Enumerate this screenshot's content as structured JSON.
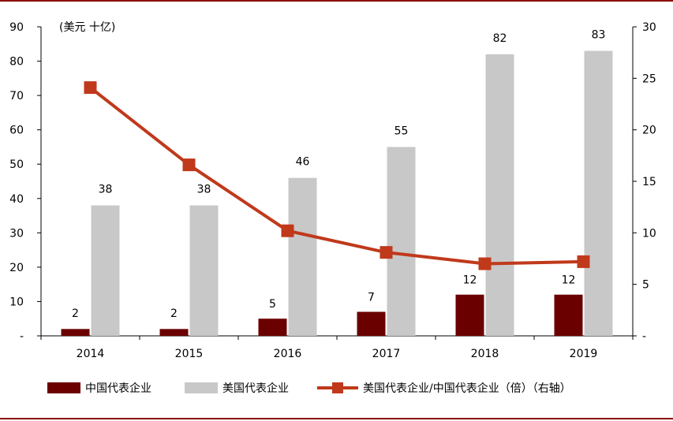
{
  "chart_data": {
    "type": "bar",
    "unit_label": "(美元 十亿)",
    "categories": [
      "2014",
      "2015",
      "2016",
      "2017",
      "2018",
      "2019"
    ],
    "series": [
      {
        "name": "中国代表企业",
        "kind": "bar",
        "axis": "left",
        "color": "#6b0000",
        "values": [
          2,
          2,
          5,
          7,
          12,
          12
        ],
        "labels": [
          "2",
          "2",
          "5",
          "7",
          "12",
          "12"
        ]
      },
      {
        "name": "美国代表企业",
        "kind": "bar",
        "axis": "left",
        "color": "#c8c8c8",
        "values": [
          38,
          38,
          46,
          55,
          82,
          83
        ],
        "labels": [
          "38",
          "38",
          "46",
          "55",
          "82",
          "83"
        ]
      },
      {
        "name": "美国代表企业/中国代表企业（倍）（右轴）",
        "kind": "line",
        "axis": "right",
        "color": "#c0391b",
        "values": [
          24.1,
          16.6,
          10.2,
          8.1,
          7.0,
          7.2
        ]
      }
    ],
    "y_left": {
      "min": 0,
      "max": 90,
      "step": 10,
      "ticks": [
        "-",
        "10",
        "20",
        "30",
        "40",
        "50",
        "60",
        "70",
        "80",
        "90"
      ]
    },
    "y_right": {
      "min": 0,
      "max": 30,
      "step": 5,
      "ticks": [
        "-",
        "5",
        "10",
        "15",
        "20",
        "25",
        "30"
      ]
    },
    "grid": false,
    "legend_position": "bottom",
    "frame_color": "#8b0000"
  }
}
